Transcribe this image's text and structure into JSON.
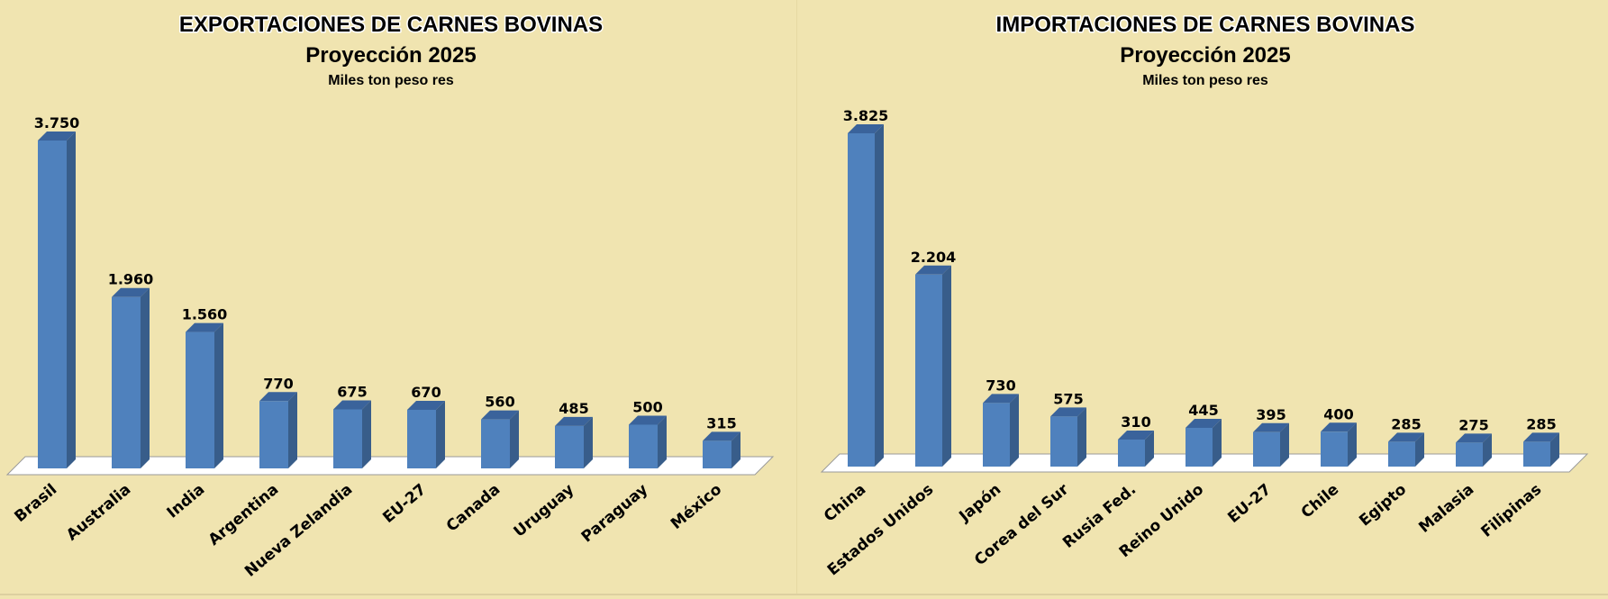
{
  "chart_data": [
    {
      "type": "bar",
      "title": "EXPORTACIONES DE CARNES BOVINAS",
      "subtitle": "Proyección 2025",
      "unit_label": "Miles ton peso res",
      "categories": [
        "Brasil",
        "Australia",
        "India",
        "Argentina",
        "Nueva Zelandia",
        "EU-27",
        "Canada",
        "Uruguay",
        "Paraguay",
        "México"
      ],
      "values": [
        3750,
        1960,
        1560,
        770,
        675,
        670,
        560,
        485,
        500,
        315
      ],
      "value_labels": [
        "3.750",
        "1.960",
        "1.560",
        "770",
        "675",
        "670",
        "560",
        "485",
        "500",
        "315"
      ],
      "ylim": [
        0,
        3750
      ],
      "grid": false,
      "legend": "none",
      "bar_color": "#4f81bd"
    },
    {
      "type": "bar",
      "title": "IMPORTACIONES DE CARNES BOVINAS",
      "subtitle": "Proyección 2025",
      "unit_label": "Miles ton peso res",
      "categories": [
        "China",
        "Estados Unidos",
        "Japón",
        "Corea del Sur",
        "Rusia Fed.",
        "Reino Unido",
        "EU-27",
        "Chile",
        "Egipto",
        "Malasia",
        "Filipinas"
      ],
      "values": [
        3825,
        2204,
        730,
        575,
        310,
        445,
        395,
        400,
        285,
        275,
        285
      ],
      "value_labels": [
        "3.825",
        "2.204",
        "730",
        "575",
        "310",
        "445",
        "395",
        "400",
        "285",
        "275",
        "285"
      ],
      "ylim": [
        0,
        3825
      ],
      "grid": false,
      "legend": "none",
      "bar_color": "#4f81bd"
    }
  ],
  "colors": {
    "background": "#f0e4b0",
    "bar_front": "#4f81bd",
    "bar_side": "#385d8a",
    "bar_top": "#3a639b",
    "floor": "#ffffff"
  }
}
